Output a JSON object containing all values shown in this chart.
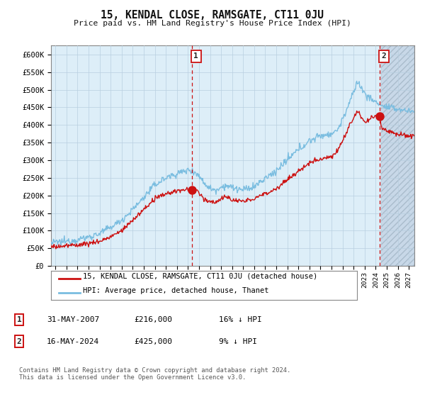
{
  "title": "15, KENDAL CLOSE, RAMSGATE, CT11 0JU",
  "subtitle": "Price paid vs. HM Land Registry's House Price Index (HPI)",
  "ylim": [
    0,
    620000
  ],
  "xlim_start": 1994.6,
  "xlim_end": 2027.5,
  "hpi_color": "#7abde0",
  "price_color": "#cc1111",
  "grid_color": "#b8cfe0",
  "background_color": "#ddeef8",
  "hatch_background": "#d0d8e8",
  "sale1_x": 2007.37,
  "sale1_y": 216000,
  "sale2_x": 2024.37,
  "sale2_y": 425000,
  "sale1_date": "31-MAY-2007",
  "sale1_price": "£216,000",
  "sale1_hpi": "16% ↓ HPI",
  "sale2_date": "16-MAY-2024",
  "sale2_price": "£425,000",
  "sale2_hpi": "9% ↓ HPI",
  "legend_line1": "15, KENDAL CLOSE, RAMSGATE, CT11 0JU (detached house)",
  "legend_line2": "HPI: Average price, detached house, Thanet",
  "footer": "Contains HM Land Registry data © Crown copyright and database right 2024.\nThis data is licensed under the Open Government Licence v3.0.",
  "hatch_start_x": 2024.5
}
